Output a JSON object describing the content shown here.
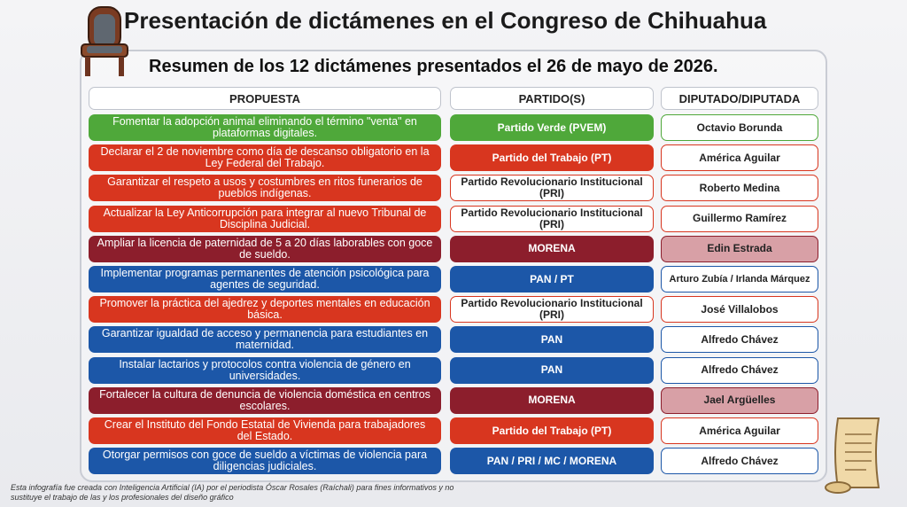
{
  "header": {
    "title": "Presentación de dictámenes en el Congreso de Chihuahua",
    "subtitle": "Resumen de los 12 dictámenes presentados el 26 de mayo de 2026."
  },
  "table": {
    "headers": [
      "PROPUESTA",
      "PARTIDO(S)",
      "DIPUTADO/DIPUTADA"
    ],
    "rows": [
      [
        "Fomentar la adopción animal eliminando el término \"venta\" en plataformas digitales.",
        "Partido Verde (PVEM)",
        "Octavio Borunda"
      ],
      [
        "Declarar el 2 de noviembre como día de descanso obligatorio en la Ley Federal del Trabajo.",
        "Partido del Trabajo (PT)",
        "América Aguilar"
      ],
      [
        "Garantizar el respeto a usos y costumbres en ritos funerarios de pueblos indígenas.",
        "Partido Revolucionario Institucional (PRI)",
        "Roberto Medina"
      ],
      [
        "Actualizar la Ley Anticorrupción para integrar al nuevo Tribunal de Disciplina Judicial.",
        "Partido Revolucionario Institucional (PRI)",
        "Guillermo Ramírez"
      ],
      [
        "Ampliar la licencia de paternidad de 5 a 20 días laborables con goce de sueldo.",
        "MORENA",
        "Edin Estrada"
      ],
      [
        "Implementar programas permanentes de atención psicológica para agentes de seguridad.",
        "PAN / PT",
        "Arturo Zubía / Irlanda Márquez"
      ],
      [
        "Promover la práctica del ajedrez y deportes mentales en educación básica.",
        "Partido Revolucionario Institucional (PRI)",
        "José Villalobos"
      ],
      [
        "Garantizar igualdad de acceso y permanencia para estudiantes en maternidad.",
        "PAN",
        "Alfredo Chávez"
      ],
      [
        "Instalar lactarios y protocolos contra violencia de género en universidades.",
        "PAN",
        "Alfredo Chávez"
      ],
      [
        "Fortalecer la cultura de denuncia de violencia doméstica en centros escolares.",
        "MORENA",
        "Jael Argüelles"
      ],
      [
        "Crear el Instituto del Fondo Estatal de Vivienda para trabajadores del Estado.",
        "Partido del Trabajo (PT)",
        "América Aguilar"
      ],
      [
        "Otorgar permisos con goce de sueldo a víctimas de violencia para diligencias judiciales.",
        "PAN / PRI / MC / MORENA",
        "Alfredo Chávez"
      ]
    ]
  },
  "footer": "Esta infografía fue creada con Inteligencia Artificial (IA) por el periodista Óscar Rosales (Raíchali) para fines informativos y no sustituye el trabajo de las y los profesionales del diseño gráfico"
}
